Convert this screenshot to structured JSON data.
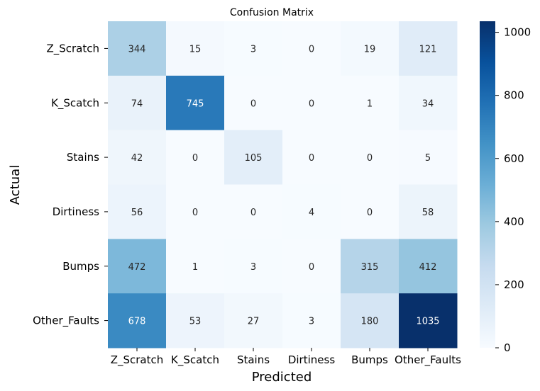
{
  "chart_data": {
    "type": "heatmap",
    "title": "Confusion Matrix",
    "xlabel": "Predicted",
    "ylabel": "Actual",
    "x_categories": [
      "Z_Scratch",
      "K_Scatch",
      "Stains",
      "Dirtiness",
      "Bumps",
      "Other_Faults"
    ],
    "y_categories": [
      "Z_Scratch",
      "K_Scatch",
      "Stains",
      "Dirtiness",
      "Bumps",
      "Other_Faults"
    ],
    "values": [
      [
        344,
        15,
        3,
        0,
        19,
        121
      ],
      [
        74,
        745,
        0,
        0,
        1,
        34
      ],
      [
        42,
        0,
        105,
        0,
        0,
        5
      ],
      [
        56,
        0,
        0,
        4,
        0,
        58
      ],
      [
        472,
        1,
        3,
        0,
        315,
        412
      ],
      [
        678,
        53,
        27,
        3,
        180,
        1035
      ]
    ],
    "colormap": "Blues",
    "vmin": 0,
    "vmax": 1035,
    "colorbar_ticks": [
      0,
      200,
      400,
      600,
      800,
      1000
    ],
    "annotations": true
  }
}
